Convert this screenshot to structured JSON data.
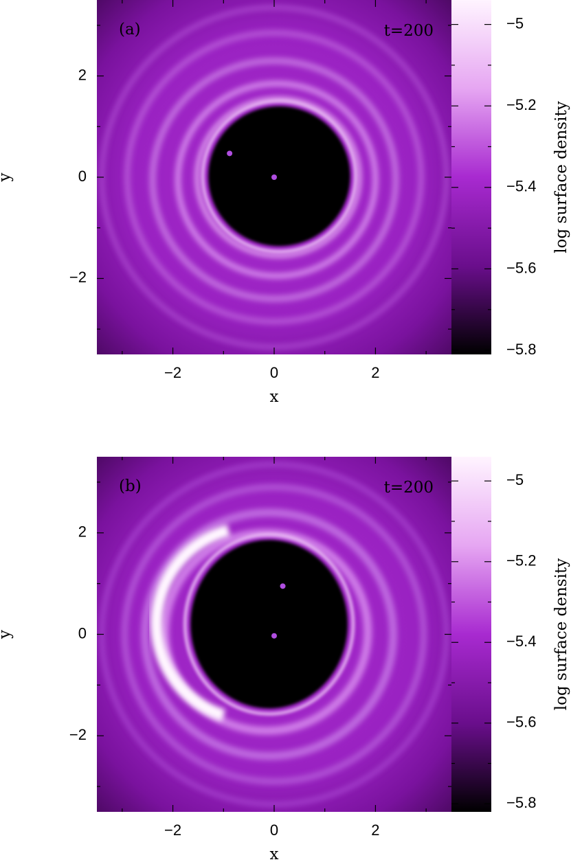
{
  "chart_data": [
    {
      "type": "heatmap",
      "panel_label": "(a)",
      "annotation": "t=200",
      "xlabel": "x",
      "ylabel": "y",
      "colorbar_label": "log surface density",
      "xlim": [
        -3.5,
        3.5
      ],
      "ylim": [
        -3.5,
        3.5
      ],
      "xticks": [
        {
          "value": -2,
          "label": "−2"
        },
        0,
        2
      ],
      "minor_xticks": [
        -3,
        -1,
        1,
        3
      ],
      "yticks": [
        {
          "value": -2,
          "label": "−2"
        },
        0,
        2
      ],
      "minor_yticks": [
        -3,
        -1,
        1,
        3
      ],
      "clim": [
        -5.81,
        -4.94
      ],
      "cticks": [
        {
          "value": -5.8,
          "label": "−5.8"
        },
        {
          "value": -5.6,
          "label": "−5.6"
        },
        {
          "value": -5.4,
          "label": "−5.4"
        },
        {
          "value": -5.2,
          "label": "−5.2"
        },
        {
          "value": -5,
          "label": "−5"
        }
      ],
      "minor_cticks": [
        -5.7,
        -5.5,
        -5.3,
        -5.1
      ],
      "points": {
        "x": [
          -0.88,
          0
        ],
        "y": [
          0.47,
          0
        ],
        "color": "#b04ee0"
      }
    },
    {
      "type": "heatmap",
      "panel_label": "(b)",
      "annotation": "t=200",
      "xlabel": "x",
      "ylabel": "y",
      "colorbar_label": "log surface density",
      "xlim": [
        -3.5,
        3.5
      ],
      "ylim": [
        -3.5,
        3.5
      ],
      "xticks": [
        {
          "value": -2,
          "label": "−2"
        },
        0,
        2
      ],
      "minor_xticks": [
        -3,
        -1,
        1,
        3
      ],
      "yticks": [
        {
          "value": -2,
          "label": "−2"
        },
        0,
        2
      ],
      "minor_yticks": [
        -3,
        -1,
        1,
        3
      ],
      "clim": [
        -5.82,
        -4.94
      ],
      "cticks": [
        {
          "value": -5.8,
          "label": "−5.8"
        },
        {
          "value": -5.6,
          "label": "−5.6"
        },
        {
          "value": -5.4,
          "label": "−5.4"
        },
        {
          "value": -5.2,
          "label": "−5.2"
        },
        {
          "value": -5,
          "label": "−5"
        }
      ],
      "minor_cticks": [
        -5.7,
        -5.5,
        -5.3,
        -5.1
      ],
      "points": {
        "x": [
          0.17,
          0
        ],
        "y": [
          0.95,
          -0.03
        ],
        "color": "#b04ee0"
      }
    }
  ]
}
